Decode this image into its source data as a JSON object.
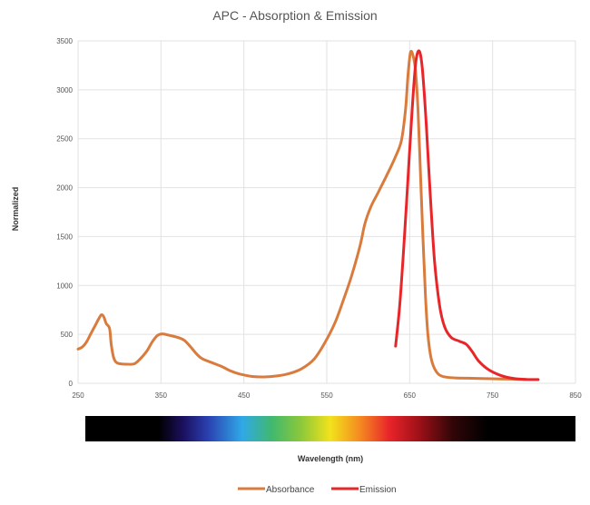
{
  "chart_data": {
    "type": "line",
    "title": "APC - Absorption & Emission",
    "xlabel": "Wavelength (nm)",
    "ylabel": "Normalized",
    "xlim": [
      250,
      850
    ],
    "ylim": [
      0,
      3500
    ],
    "x_ticks": [
      250,
      350,
      450,
      550,
      650,
      750,
      850
    ],
    "y_ticks": [
      0,
      500,
      1000,
      1500,
      2000,
      2500,
      3000,
      3500
    ],
    "grid": true,
    "legend_position": "bottom",
    "color_bar": "visible-spectrum",
    "series": [
      {
        "name": "Absorbance",
        "color": "#d97b3c",
        "points": [
          [
            250,
            350
          ],
          [
            255,
            370
          ],
          [
            260,
            420
          ],
          [
            265,
            500
          ],
          [
            270,
            580
          ],
          [
            275,
            660
          ],
          [
            278,
            700
          ],
          [
            281,
            680
          ],
          [
            284,
            610
          ],
          [
            288,
            560
          ],
          [
            290,
            400
          ],
          [
            293,
            260
          ],
          [
            298,
            205
          ],
          [
            310,
            195
          ],
          [
            318,
            200
          ],
          [
            325,
            250
          ],
          [
            333,
            330
          ],
          [
            340,
            430
          ],
          [
            346,
            490
          ],
          [
            352,
            505
          ],
          [
            360,
            490
          ],
          [
            370,
            470
          ],
          [
            378,
            440
          ],
          [
            385,
            380
          ],
          [
            393,
            300
          ],
          [
            400,
            250
          ],
          [
            415,
            200
          ],
          [
            425,
            165
          ],
          [
            433,
            130
          ],
          [
            445,
            95
          ],
          [
            460,
            70
          ],
          [
            475,
            65
          ],
          [
            490,
            75
          ],
          [
            505,
            100
          ],
          [
            520,
            150
          ],
          [
            535,
            250
          ],
          [
            548,
            420
          ],
          [
            560,
            620
          ],
          [
            570,
            850
          ],
          [
            580,
            1100
          ],
          [
            590,
            1400
          ],
          [
            596,
            1630
          ],
          [
            603,
            1800
          ],
          [
            612,
            1950
          ],
          [
            622,
            2120
          ],
          [
            632,
            2300
          ],
          [
            640,
            2480
          ],
          [
            645,
            2800
          ],
          [
            648,
            3150
          ],
          [
            651,
            3380
          ],
          [
            654,
            3350
          ],
          [
            657,
            3200
          ],
          [
            660,
            2800
          ],
          [
            663,
            2150
          ],
          [
            666,
            1500
          ],
          [
            669,
            900
          ],
          [
            672,
            500
          ],
          [
            676,
            250
          ],
          [
            682,
            120
          ],
          [
            690,
            70
          ],
          [
            705,
            55
          ],
          [
            730,
            50
          ],
          [
            760,
            45
          ],
          [
            790,
            40
          ]
        ]
      },
      {
        "name": "Emission",
        "color": "#e8262a",
        "points": [
          [
            633,
            380
          ],
          [
            638,
            800
          ],
          [
            643,
            1400
          ],
          [
            648,
            2100
          ],
          [
            653,
            2800
          ],
          [
            657,
            3250
          ],
          [
            660,
            3390
          ],
          [
            663,
            3360
          ],
          [
            666,
            3150
          ],
          [
            670,
            2650
          ],
          [
            675,
            1900
          ],
          [
            680,
            1250
          ],
          [
            686,
            800
          ],
          [
            692,
            580
          ],
          [
            700,
            470
          ],
          [
            710,
            430
          ],
          [
            718,
            400
          ],
          [
            725,
            330
          ],
          [
            733,
            230
          ],
          [
            745,
            140
          ],
          [
            760,
            80
          ],
          [
            775,
            50
          ],
          [
            790,
            40
          ],
          [
            805,
            38
          ]
        ]
      }
    ]
  }
}
